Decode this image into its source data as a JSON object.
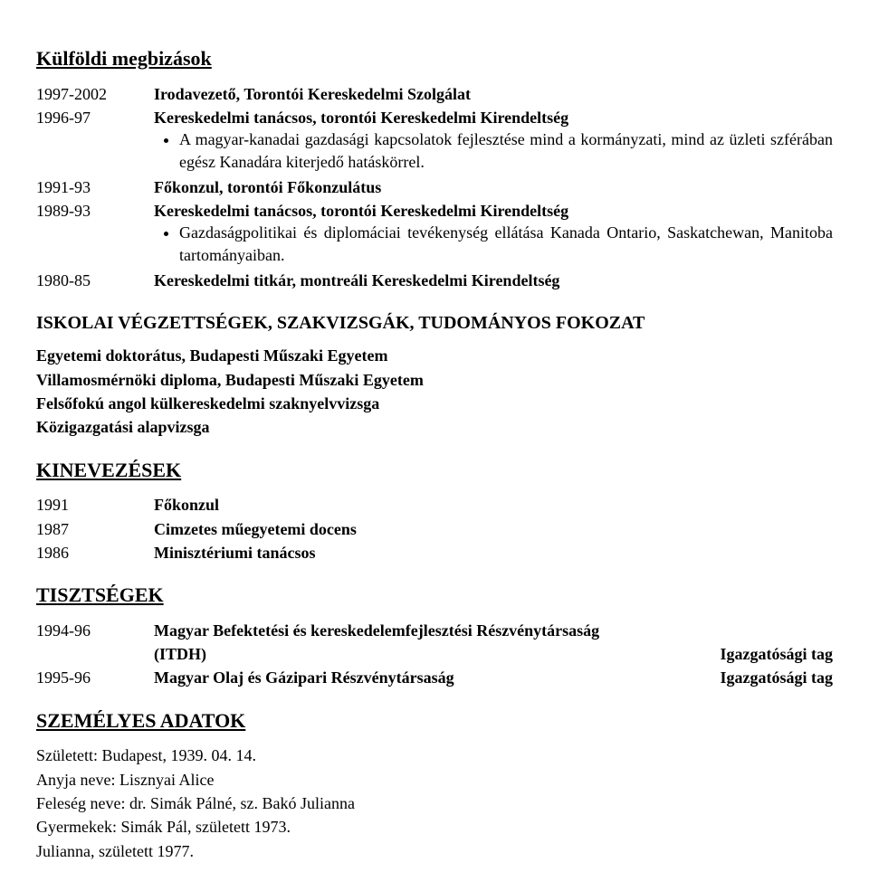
{
  "sections": {
    "foreign_assignments": {
      "heading": "Külföldi megbizások",
      "entries": [
        {
          "year": "1997-2002",
          "title": "Irodavezető, Torontói Kereskedelmi Szolgálat"
        },
        {
          "year": "1996-97",
          "title": "Kereskedelmi tanácsos, torontói Kereskedelmi Kirendeltség",
          "bullets": [
            "A magyar-kanadai gazdasági kapcsolatok fejlesztése mind a kormányzati, mind az üzleti szférában egész Kanadára kiterjedő hatáskörrel."
          ]
        },
        {
          "year": "1991-93",
          "title": "Főkonzul, torontói Főkonzulátus"
        },
        {
          "year": "1989-93",
          "title": "Kereskedelmi tanácsos, torontói Kereskedelmi Kirendeltség",
          "bullets": [
            "Gazdaságpolitikai és diplomáciai tevékenység ellátása Kanada Ontario, Saskatchewan, Manitoba tartományaiban."
          ]
        },
        {
          "year": "1980-85",
          "title": "Kereskedelmi titkár, montreáli Kereskedelmi Kirendeltség"
        }
      ]
    },
    "education": {
      "heading": "ISKOLAI VÉGZETTSÉGEK, SZAKVIZSGÁK, TUDOMÁNYOS FOKOZAT",
      "lines": [
        "Egyetemi doktorátus, Budapesti Műszaki Egyetem",
        "Villamosmérnöki diploma, Budapesti Műszaki Egyetem",
        "Felsőfokú angol külkereskedelmi szaknyelvvizsga",
        "Közigazgatási alapvizsga"
      ]
    },
    "appointments": {
      "heading": "KINEVEZÉSEK",
      "rows": [
        {
          "year": "1991",
          "title": "Főkonzul"
        },
        {
          "year": "1987",
          "title": "Cimzetes műegyetemi docens"
        },
        {
          "year": "1986",
          "title": "Minisztériumi tanácsos"
        }
      ]
    },
    "offices": {
      "heading": "TISZTSÉGEK",
      "rows": [
        {
          "year": "1994-96",
          "org_line1": "Magyar Befektetési és kereskedelemfejlesztési Részvénytársaság",
          "org_line2": "(ITDH)",
          "role": "Igazgatósági tag"
        },
        {
          "year": "1995-96",
          "org_line1": "Magyar Olaj és Gázipari Részvénytársaság",
          "role": "Igazgatósági tag"
        }
      ]
    },
    "personal": {
      "heading": "SZEMÉLYES ADATOK",
      "lines": [
        "Született: Budapest, 1939. 04. 14.",
        "Anyja neve: Lisznyai Alice",
        "Feleség neve: dr. Simák Pálné, sz. Bakó Julianna",
        "Gyermekek:  Simák Pál, született 1973.",
        "Julianna, született 1977."
      ]
    }
  }
}
